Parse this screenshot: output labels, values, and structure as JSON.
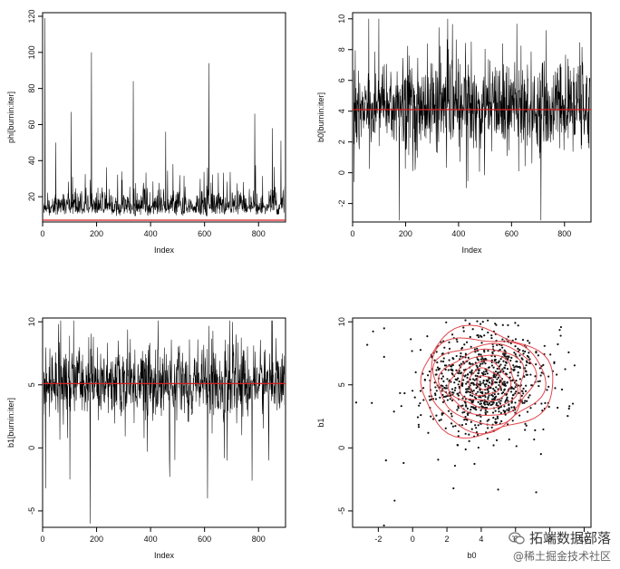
{
  "colors": {
    "trace": "#000000",
    "reference_line": "#d81e1e",
    "contour": "#e0474c",
    "points": "#111111",
    "background": "#ffffff"
  },
  "watermark": {
    "line1": "拓端数据部落",
    "line2": "@稀土掘金技术社区",
    "icon": "wechat-logo-icon"
  },
  "chart_data": [
    {
      "type": "line",
      "title": "",
      "xlabel": "Index",
      "ylabel": "phi[burnin:iter]",
      "xlim": [
        0,
        900
      ],
      "ylim": [
        6,
        122
      ],
      "xticks": [
        0,
        200,
        400,
        600,
        800
      ],
      "yticks": [
        20,
        40,
        60,
        80,
        100,
        120
      ],
      "n_points": 900,
      "series": [
        {
          "baseline": 9,
          "typical_range": [
            7,
            35
          ],
          "spikes": [
            {
              "x": 8,
              "y": 119
            },
            {
              "x": 180,
              "y": 100
            },
            {
              "x": 335,
              "y": 84
            },
            {
              "x": 615,
              "y": 94
            },
            {
              "x": 105,
              "y": 67
            },
            {
              "x": 785,
              "y": 66
            },
            {
              "x": 455,
              "y": 56
            },
            {
              "x": 850,
              "y": 58
            },
            {
              "x": 48,
              "y": 50
            },
            {
              "x": 882,
              "y": 51
            }
          ]
        }
      ],
      "reference_line": 7
    },
    {
      "type": "line",
      "title": "",
      "xlabel": "Index",
      "ylabel": "b0[burnin:iter]",
      "xlim": [
        0,
        900
      ],
      "ylim": [
        -3.2,
        10.4
      ],
      "xticks": [
        0,
        200,
        400,
        600,
        800
      ],
      "yticks": [
        -2,
        0,
        2,
        4,
        6,
        8,
        10
      ],
      "n_points": 900,
      "series": [
        {
          "mean": 4.3,
          "typical_range": [
            0.5,
            9.7
          ],
          "spikes": [
            {
              "x": 175,
              "y": -3.1
            },
            {
              "x": 710,
              "y": -3.1
            },
            {
              "x": 5,
              "y": -0.6
            },
            {
              "x": 60,
              "y": 10.0
            }
          ]
        }
      ],
      "reference_line": 4.1
    },
    {
      "type": "line",
      "title": "",
      "xlabel": "Index",
      "ylabel": "b1[burnin:iter]",
      "xlim": [
        0,
        900
      ],
      "ylim": [
        -6.3,
        10.3
      ],
      "xticks": [
        0,
        200,
        400,
        600,
        800
      ],
      "yticks": [
        -5,
        0,
        5,
        10
      ],
      "n_points": 900,
      "series": [
        {
          "mean": 5.2,
          "typical_range": [
            0.5,
            9.8
          ],
          "spikes": [
            {
              "x": 175,
              "y": -6.0
            },
            {
              "x": 610,
              "y": -4.0
            },
            {
              "x": 10,
              "y": -3.2
            },
            {
              "x": 100,
              "y": -2.5
            },
            {
              "x": 470,
              "y": -2.3
            },
            {
              "x": 775,
              "y": -2.6
            }
          ]
        }
      ],
      "reference_line": 5.1
    },
    {
      "type": "scatter",
      "title": "",
      "xlabel": "b0",
      "ylabel": "b1",
      "xlim": [
        -3.5,
        10.4
      ],
      "ylim": [
        -6.3,
        10.3
      ],
      "xticks": [
        -2,
        0,
        2,
        4,
        6,
        8,
        10
      ],
      "yticks": [
        -5,
        0,
        5,
        10
      ],
      "n_points": 900,
      "points_center": [
        4.2,
        5.1
      ],
      "points_spread": [
        2.2,
        2.4
      ],
      "contours": {
        "center": [
          4.2,
          5.2
        ],
        "levels": 8,
        "outer_extent_x": [
          0.5,
          8.2
        ],
        "outer_extent_y": [
          0.9,
          9.3
        ]
      }
    }
  ]
}
